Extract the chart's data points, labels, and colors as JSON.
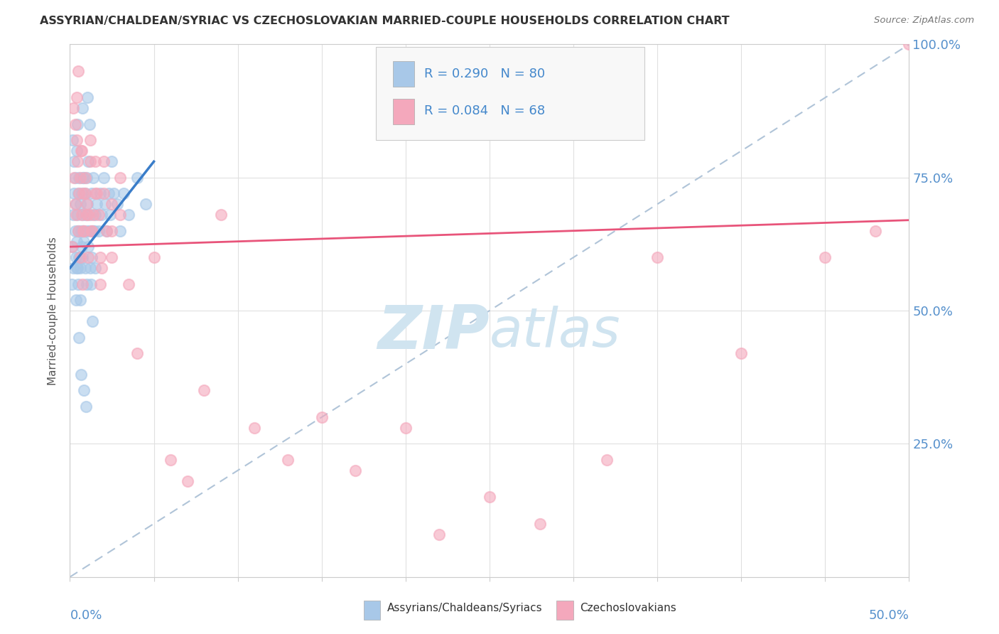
{
  "title": "ASSYRIAN/CHALDEAN/SYRIAC VS CZECHOSLOVAKIAN MARRIED-COUPLE HOUSEHOLDS CORRELATION CHART",
  "source_text": "Source: ZipAtlas.com",
  "ylabel": "Married-couple Households",
  "right_ytick_values": [
    25.0,
    50.0,
    75.0,
    100.0
  ],
  "legend_blue_r": 0.29,
  "legend_blue_n": 80,
  "legend_pink_r": 0.084,
  "legend_pink_n": 68,
  "blue_color": "#a8c8e8",
  "pink_color": "#f4a8bc",
  "blue_line_color": "#3a7dc9",
  "pink_line_color": "#e8547a",
  "dashed_line_color": "#b0c4d8",
  "watermark_color": "#d0e4f0",
  "background_color": "#ffffff",
  "xmin": 0.0,
  "xmax": 50.0,
  "ymin": 0.0,
  "ymax": 100.0,
  "blue_scatter_x": [
    0.1,
    0.15,
    0.2,
    0.2,
    0.25,
    0.3,
    0.3,
    0.35,
    0.35,
    0.4,
    0.4,
    0.45,
    0.45,
    0.5,
    0.5,
    0.5,
    0.55,
    0.55,
    0.6,
    0.6,
    0.65,
    0.7,
    0.7,
    0.75,
    0.75,
    0.8,
    0.8,
    0.85,
    0.9,
    0.9,
    0.95,
    1.0,
    1.0,
    1.0,
    1.05,
    1.1,
    1.1,
    1.15,
    1.2,
    1.2,
    1.3,
    1.3,
    1.4,
    1.4,
    1.5,
    1.5,
    1.6,
    1.7,
    1.8,
    1.9,
    2.0,
    2.1,
    2.2,
    2.3,
    2.4,
    2.5,
    2.6,
    2.8,
    3.0,
    3.2,
    3.5,
    4.0,
    4.5,
    0.15,
    0.25,
    0.35,
    0.45,
    0.55,
    0.65,
    0.75,
    0.85,
    0.95,
    1.05,
    1.15,
    1.25,
    1.35,
    1.45,
    0.4,
    0.6,
    0.8
  ],
  "blue_scatter_y": [
    55,
    62,
    68,
    58,
    72,
    65,
    75,
    60,
    70,
    63,
    80,
    58,
    68,
    55,
    72,
    65,
    60,
    75,
    58,
    70,
    65,
    62,
    72,
    60,
    68,
    65,
    75,
    63,
    58,
    72,
    68,
    65,
    75,
    55,
    70,
    62,
    78,
    65,
    68,
    58,
    72,
    60,
    65,
    75,
    68,
    58,
    70,
    65,
    72,
    68,
    75,
    70,
    65,
    72,
    68,
    78,
    72,
    70,
    65,
    72,
    68,
    75,
    70,
    82,
    78,
    52,
    85,
    45,
    38,
    88,
    35,
    32,
    90,
    85,
    55,
    48,
    65,
    58,
    52,
    75
  ],
  "pink_scatter_x": [
    0.1,
    0.2,
    0.25,
    0.3,
    0.35,
    0.4,
    0.45,
    0.5,
    0.55,
    0.6,
    0.65,
    0.7,
    0.75,
    0.8,
    0.85,
    0.9,
    1.0,
    1.1,
    1.2,
    1.3,
    1.5,
    1.7,
    1.9,
    2.2,
    2.5,
    3.0,
    0.3,
    0.5,
    0.7,
    0.9,
    1.1,
    1.3,
    1.5,
    1.8,
    2.0,
    2.5,
    3.0,
    0.4,
    0.6,
    0.8,
    1.0,
    1.2,
    1.4,
    1.6,
    1.8,
    2.0,
    2.5,
    3.5,
    4.0,
    5.0,
    6.0,
    7.0,
    8.0,
    9.0,
    11.0,
    13.0,
    15.0,
    17.0,
    20.0,
    22.0,
    25.0,
    28.0,
    32.0,
    35.0,
    40.0,
    45.0,
    48.0,
    50.0
  ],
  "pink_scatter_y": [
    62,
    88,
    75,
    70,
    68,
    82,
    78,
    65,
    72,
    60,
    80,
    68,
    55,
    72,
    65,
    75,
    68,
    60,
    78,
    65,
    72,
    68,
    58,
    65,
    70,
    75,
    85,
    95,
    80,
    72,
    68,
    65,
    78,
    55,
    72,
    60,
    68,
    90,
    75,
    65,
    70,
    82,
    68,
    72,
    60,
    78,
    65,
    55,
    42,
    60,
    22,
    18,
    35,
    68,
    28,
    22,
    30,
    20,
    28,
    8,
    15,
    10,
    22,
    60,
    42,
    60,
    65,
    100
  ],
  "blue_trend_x": [
    0.0,
    5.0
  ],
  "blue_trend_y": [
    58.0,
    78.0
  ],
  "pink_trend_x": [
    0.0,
    50.0
  ],
  "pink_trend_y": [
    62.0,
    67.0
  ],
  "dashed_trend_x": [
    0.0,
    50.0
  ],
  "dashed_trend_y": [
    0.0,
    100.0
  ],
  "grid_x_ticks": [
    0,
    5,
    10,
    15,
    20,
    25,
    30,
    35,
    40,
    45,
    50
  ],
  "grid_y_ticks": [
    0,
    25,
    50,
    75,
    100
  ]
}
